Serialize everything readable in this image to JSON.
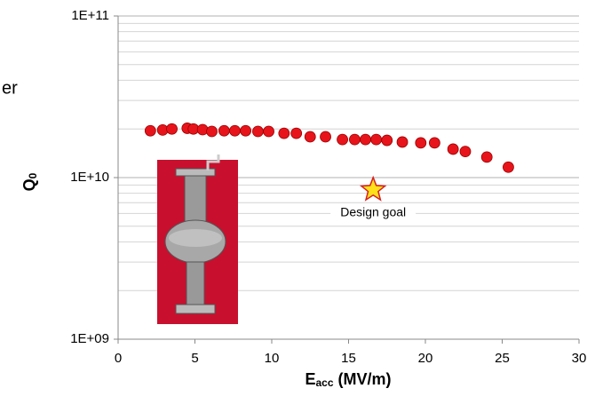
{
  "chart_data": {
    "type": "scatter",
    "log_y": true,
    "grid": true,
    "x_label": "E",
    "x_label_sub": "acc",
    "x_label_rest": " (MV/m)",
    "y_label": "Q",
    "y_label_sub": "0",
    "side_text": "er",
    "xlim": [
      0,
      30
    ],
    "xticks": [
      0,
      5,
      10,
      15,
      20,
      25,
      30
    ],
    "ylim": [
      1000000000,
      100000000000
    ],
    "yticks": [
      {
        "value": 1000000000,
        "label": "1E+09"
      },
      {
        "value": 10000000000,
        "label": "1E+10"
      },
      {
        "value": 100000000000,
        "label": "1E+11"
      }
    ],
    "series": [
      {
        "color": "#e8141b",
        "x": [
          2.1,
          2.9,
          3.5,
          4.5,
          4.9,
          5.5,
          6.1,
          6.9,
          7.6,
          8.3,
          9.1,
          9.8,
          10.8,
          11.6,
          12.5,
          13.5,
          14.6,
          15.4,
          16.1,
          16.8,
          17.5,
          18.5,
          19.7,
          20.6,
          21.8,
          22.6,
          24.0,
          25.4
        ],
        "values": [
          19500000000,
          19700000000,
          20000000000,
          20200000000,
          20000000000,
          19800000000,
          19300000000,
          19500000000,
          19500000000,
          19500000000,
          19300000000,
          19300000000,
          18800000000,
          18800000000,
          17900000000,
          17900000000,
          17200000000,
          17200000000,
          17200000000,
          17200000000,
          17000000000,
          16600000000,
          16400000000,
          16400000000,
          15000000000,
          14500000000,
          13400000000,
          11600000000
        ]
      }
    ],
    "goal": {
      "label": "Design goal",
      "x": 16.6,
      "value": 8400000000,
      "color": "#ffe11a"
    }
  }
}
